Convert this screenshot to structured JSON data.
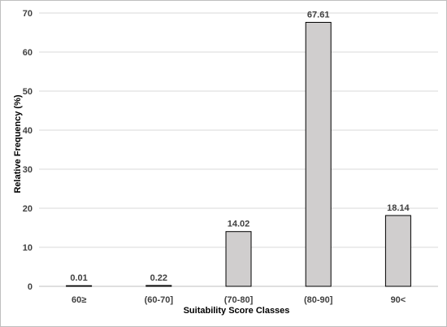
{
  "chart_data": {
    "type": "bar",
    "categories": [
      "60≥",
      "(60-70]",
      "(70-80]",
      "(80-90]",
      "90<"
    ],
    "values": [
      0.01,
      0.22,
      14.02,
      67.61,
      18.14
    ],
    "data_labels": [
      "0.01",
      "0.22",
      "14.02",
      "67.61",
      "18.14"
    ],
    "xlabel": "Suitability Score Classes",
    "ylabel": "Relative Frequency (%)",
    "ylim": [
      0,
      70
    ],
    "yticks": [
      0,
      10,
      20,
      30,
      40,
      50,
      60,
      70
    ],
    "grid": true,
    "legend": "none",
    "colors": {
      "bar_fill": "#d0cece",
      "bar_stroke": "#000000",
      "grid": "#d9d9d9"
    }
  }
}
